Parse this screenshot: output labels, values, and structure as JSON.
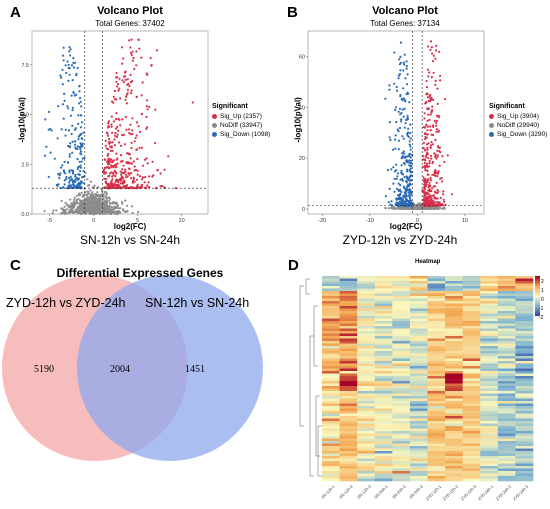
{
  "panels": {
    "A": {
      "letter": "A",
      "title": "Volcano Plot",
      "subtitle": "Total Genes: 37402",
      "xlabel": "log2(FC)",
      "ylabel": "-log10(pVal)",
      "caption": "SN-12h vs SN-24h"
    },
    "B": {
      "letter": "B",
      "title": "Volcano Plot",
      "subtitle": "Total Genes: 37134",
      "xlabel": "log2(FC)",
      "ylabel": "-log10(pVal)",
      "caption": "ZYD-12h vs ZYD-24h"
    },
    "C": {
      "letter": "C",
      "title": "Differential Expressed Genes",
      "left_label": "ZYD-12h vs ZYD-24h",
      "right_label": "SN-12h vs SN-24h"
    },
    "D": {
      "letter": "D",
      "title": "Heatmap"
    }
  },
  "legends": {
    "A": {
      "title": "Significant",
      "items": [
        "Sig_Up (2357)",
        "NoDiff (33947)",
        "Sig_Down (1098)"
      ]
    },
    "B": {
      "title": "Significant",
      "items": [
        "Sig_Up (3904)",
        "NoDiff (29940)",
        "Sig_Down (3290)"
      ]
    }
  },
  "colors": {
    "up": "#d9304a",
    "nodiff": "#8c8c8c",
    "down": "#2a6bb5",
    "venn_left": "#f4a6a6",
    "venn_right": "#8fa8ee"
  },
  "chart_data": [
    {
      "type": "scatter",
      "title": "Volcano Plot",
      "subtitle": "Total Genes: 37402",
      "xlabel": "log2(FC)",
      "ylabel": "-log10(pVal)",
      "xlim": [
        -7,
        13
      ],
      "ylim": [
        0,
        9.2
      ],
      "xticks": [
        "-5",
        "0",
        "5",
        "10"
      ],
      "yticks": [
        "0.0",
        "2.5",
        "5.0",
        "7.5"
      ],
      "thresholds": {
        "x": [
          -1,
          1
        ],
        "y": 1.3
      },
      "series": [
        {
          "name": "Sig_Up",
          "count": 2357
        },
        {
          "name": "NoDiff",
          "count": 33947
        },
        {
          "name": "Sig_Down",
          "count": 1098
        }
      ],
      "caption": "SN-12h vs SN-24h"
    },
    {
      "type": "scatter",
      "title": "Volcano Plot",
      "subtitle": "Total Genes: 37134",
      "xlabel": "log2(FC)",
      "ylabel": "-log10(pVal)",
      "xlim": [
        -23,
        14
      ],
      "ylim": [
        -2,
        70
      ],
      "xticks": [
        "-20",
        "-10",
        "0",
        "10"
      ],
      "yticks": [
        "0",
        "20",
        "40",
        "60"
      ],
      "thresholds": {
        "x": [
          -1,
          1
        ],
        "y": 1.3
      },
      "series": [
        {
          "name": "Sig_Up",
          "count": 3904
        },
        {
          "name": "NoDiff",
          "count": 29940
        },
        {
          "name": "Sig_Down",
          "count": 3290
        }
      ],
      "caption": "ZYD-12h vs ZYD-24h"
    },
    {
      "type": "venn",
      "title": "Differential Expressed Genes",
      "sets": [
        {
          "name": "ZYD-12h vs ZYD-24h",
          "only": "5190"
        },
        {
          "name": "SN-12h vs SN-24h",
          "only": "1451"
        }
      ],
      "intersection": "2004"
    },
    {
      "type": "heatmap",
      "title": "Heatmap",
      "colorbar_ticks": [
        "2",
        "1",
        "0",
        "-1",
        "-2"
      ],
      "columns": [
        "SN-12h-1",
        "SN-12h-2",
        "SN-12h-3",
        "SN-24h-1",
        "SN-24h-2",
        "SN-24h-3",
        "ZYD-12h-1",
        "ZYD-12h-2",
        "ZYD-12h-3",
        "ZYD-24h-1",
        "ZYD-24h-2",
        "ZYD-24h-3"
      ]
    }
  ]
}
